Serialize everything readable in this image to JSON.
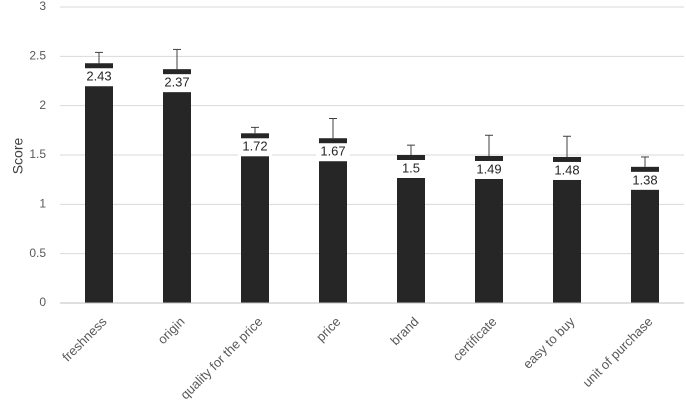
{
  "chart_data": {
    "type": "bar",
    "title": "",
    "xlabel": "",
    "ylabel": "Score",
    "ylim": [
      0,
      3
    ],
    "yticks": [
      "0",
      "0.5",
      "1",
      "1.5",
      "2",
      "2.5",
      "3"
    ],
    "grid": true,
    "legend": "none",
    "categories": [
      "freshness",
      "origin",
      "quality for the price",
      "price",
      "brand",
      "certificate",
      "easy to buy",
      "unit of purchase"
    ],
    "values": [
      2.43,
      2.37,
      1.72,
      1.67,
      1.5,
      1.49,
      1.48,
      1.38
    ],
    "value_labels": [
      "2.43",
      "2.37",
      "1.72",
      "1.67",
      "1.5",
      "1.49",
      "1.48",
      "1.38"
    ],
    "error_upper": [
      2.54,
      2.57,
      1.78,
      1.87,
      1.6,
      1.7,
      1.69,
      1.48
    ],
    "colors": {
      "bar": "#262626",
      "grid": "#d9d9d9",
      "error": "#404040",
      "label_bg": "#ffffff"
    }
  }
}
